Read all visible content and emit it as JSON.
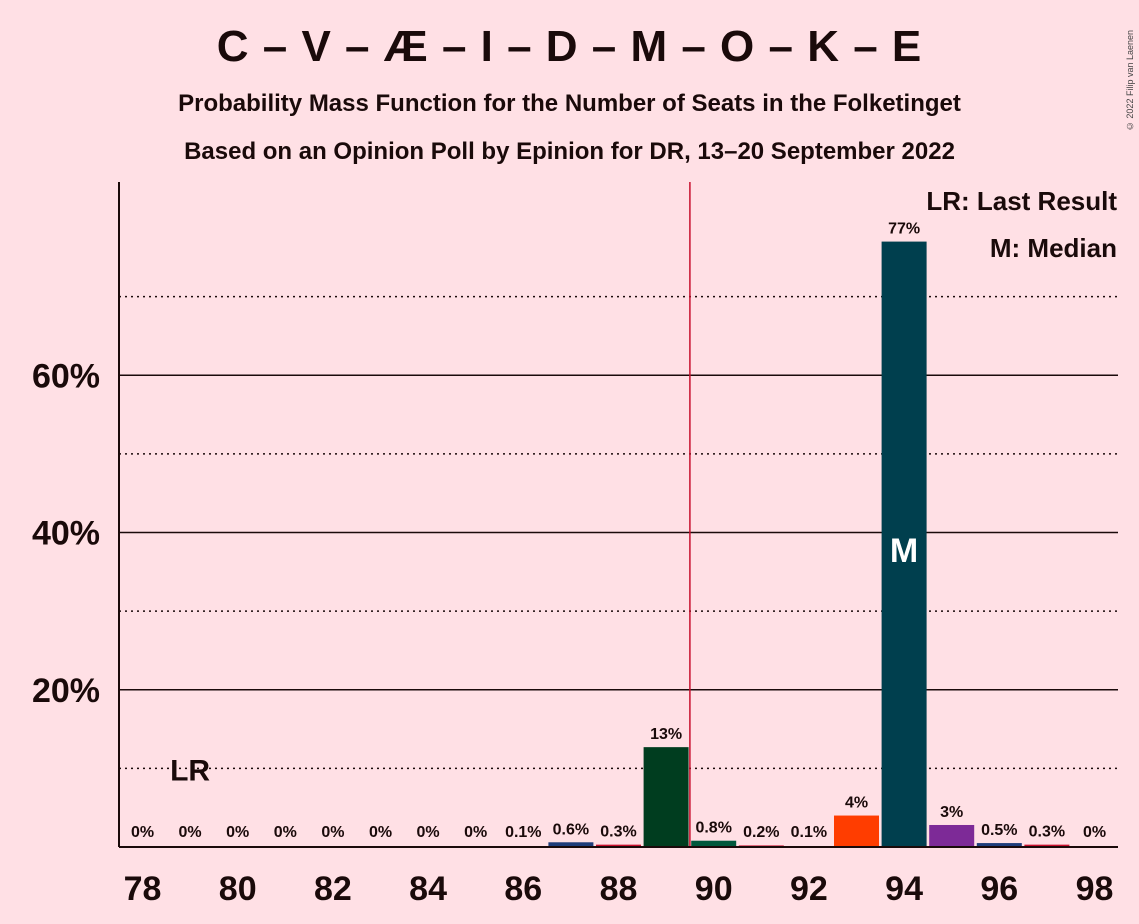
{
  "chart_data": {
    "type": "bar",
    "title": "C – V – Æ – I – D – M – O – K – E",
    "subtitle": "Probability Mass Function for the Number of Seats in the Folketinget",
    "subtitle2": "Based on an Opinion Poll by Epinion for DR, 13–20 September 2022",
    "copyright": "© 2022 Filip van Laenen",
    "legend": {
      "lr": "LR: Last Result",
      "m": "M: Median"
    },
    "x": [
      78,
      79,
      80,
      81,
      82,
      83,
      84,
      85,
      86,
      87,
      88,
      89,
      90,
      91,
      92,
      93,
      94,
      95,
      96,
      97,
      98
    ],
    "values": [
      0,
      0,
      0,
      0,
      0,
      0,
      0,
      0,
      0.1,
      0.6,
      0.3,
      12.7,
      0.8,
      0.2,
      0.1,
      4.0,
      77.0,
      2.8,
      0.5,
      0.3,
      0
    ],
    "labels": [
      "0%",
      "0%",
      "0%",
      "0%",
      "0%",
      "0%",
      "0%",
      "0%",
      "0.1%",
      "0.6%",
      "0.3%",
      "13%",
      "0.8%",
      "0.2%",
      "0.1%",
      "4%",
      "77%",
      "3%",
      "0.5%",
      "0.3%",
      "0%"
    ],
    "colors": [
      "#C8102E",
      "#C8102E",
      "#C8102E",
      "#C8102E",
      "#C8102E",
      "#C8102E",
      "#C8102E",
      "#C8102E",
      "#C8102E",
      "#1F3D7A",
      "#C8102E",
      "#003D1F",
      "#00583C",
      "#C8102E",
      "#C8102E",
      "#FF3D00",
      "#003F4E",
      "#7D2A97",
      "#1F3D7A",
      "#C8102E",
      "#C8102E"
    ],
    "xticks": [
      78,
      80,
      82,
      84,
      86,
      88,
      90,
      92,
      94,
      96,
      98
    ],
    "yticks": [
      20,
      40,
      60
    ],
    "ytick_labels": [
      "20%",
      "40%",
      "60%"
    ],
    "ylim": [
      0,
      84
    ],
    "dotted_gridlines": [
      10,
      30,
      50,
      70
    ],
    "last_result": {
      "seat": 79,
      "label": "LR"
    },
    "median": {
      "seat": 94,
      "label": "M"
    },
    "majority_line": 89.5,
    "majority_color": "#C8102E"
  }
}
